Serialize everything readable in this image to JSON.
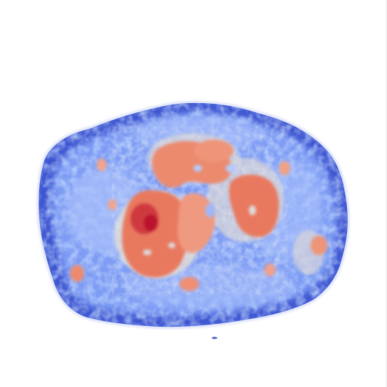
{
  "image": {
    "subject": "",
    "colormap": {
      "low": "#3b4cc0",
      "mid_low": "#8db0fe",
      "mid": "#dddcdc",
      "mid_high": "#f49a7b",
      "high": "#b40426"
    },
    "background": "#ffffff"
  }
}
